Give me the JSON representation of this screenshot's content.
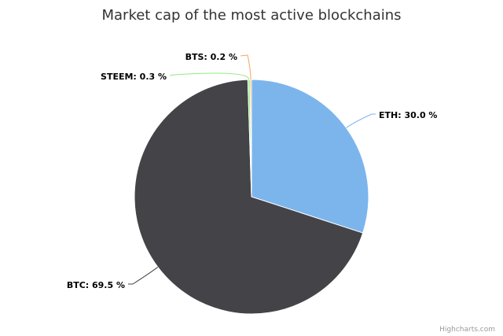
{
  "chart_data": {
    "type": "pie",
    "title": "Market cap of the most active blockchains",
    "categories": [
      "ETH",
      "BTC",
      "STEEM",
      "BTS"
    ],
    "values": [
      30.0,
      69.5,
      0.3,
      0.2
    ],
    "unit": "%",
    "labels": [
      "ETH: 30.0 %",
      "BTC: 69.5 %",
      "STEEM: 0.3 %",
      "BTS: 0.2 %"
    ],
    "colors": [
      "#7cb5ec",
      "#434348",
      "#90ed7d",
      "#f7a35c"
    ],
    "legend": "none",
    "data_labels": "outside-with-connectors"
  },
  "credits": {
    "text": "Highcharts.com"
  }
}
